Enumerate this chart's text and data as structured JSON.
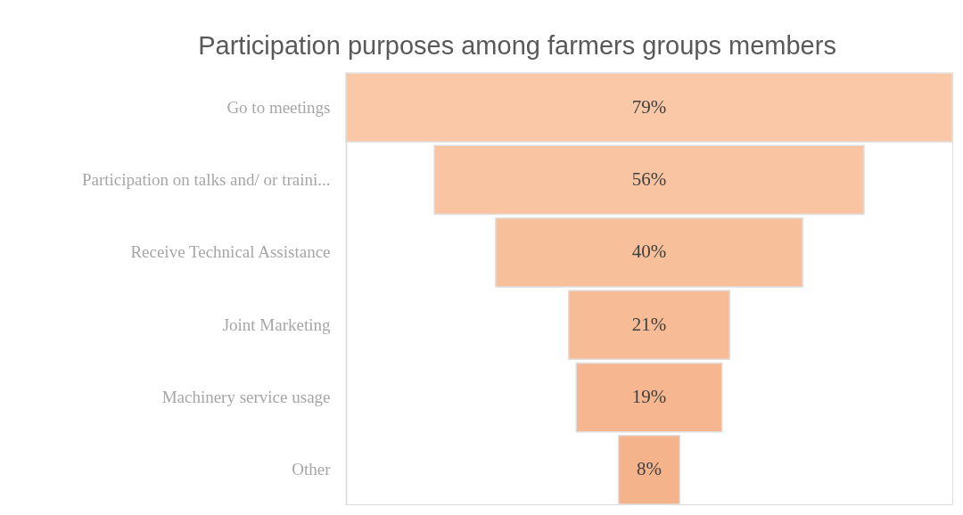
{
  "chart_data": {
    "type": "other",
    "title": "Participation purposes among farmers groups members",
    "categories": [
      "Go to meetings",
      "Participation on talks and/ or traini...",
      "Receive Technical Assistance",
      "Joint Marketing",
      "Machinery service usage",
      "Other"
    ],
    "values": [
      79,
      56,
      40,
      21,
      19,
      8
    ],
    "value_labels": [
      "79%",
      "56%",
      "40%",
      "21%",
      "19%",
      "8%"
    ],
    "colors": [
      "#fac8a6",
      "#f9c4a1",
      "#f8bf9b",
      "#f7bb96",
      "#f6b790",
      "#f5b38b"
    ]
  }
}
